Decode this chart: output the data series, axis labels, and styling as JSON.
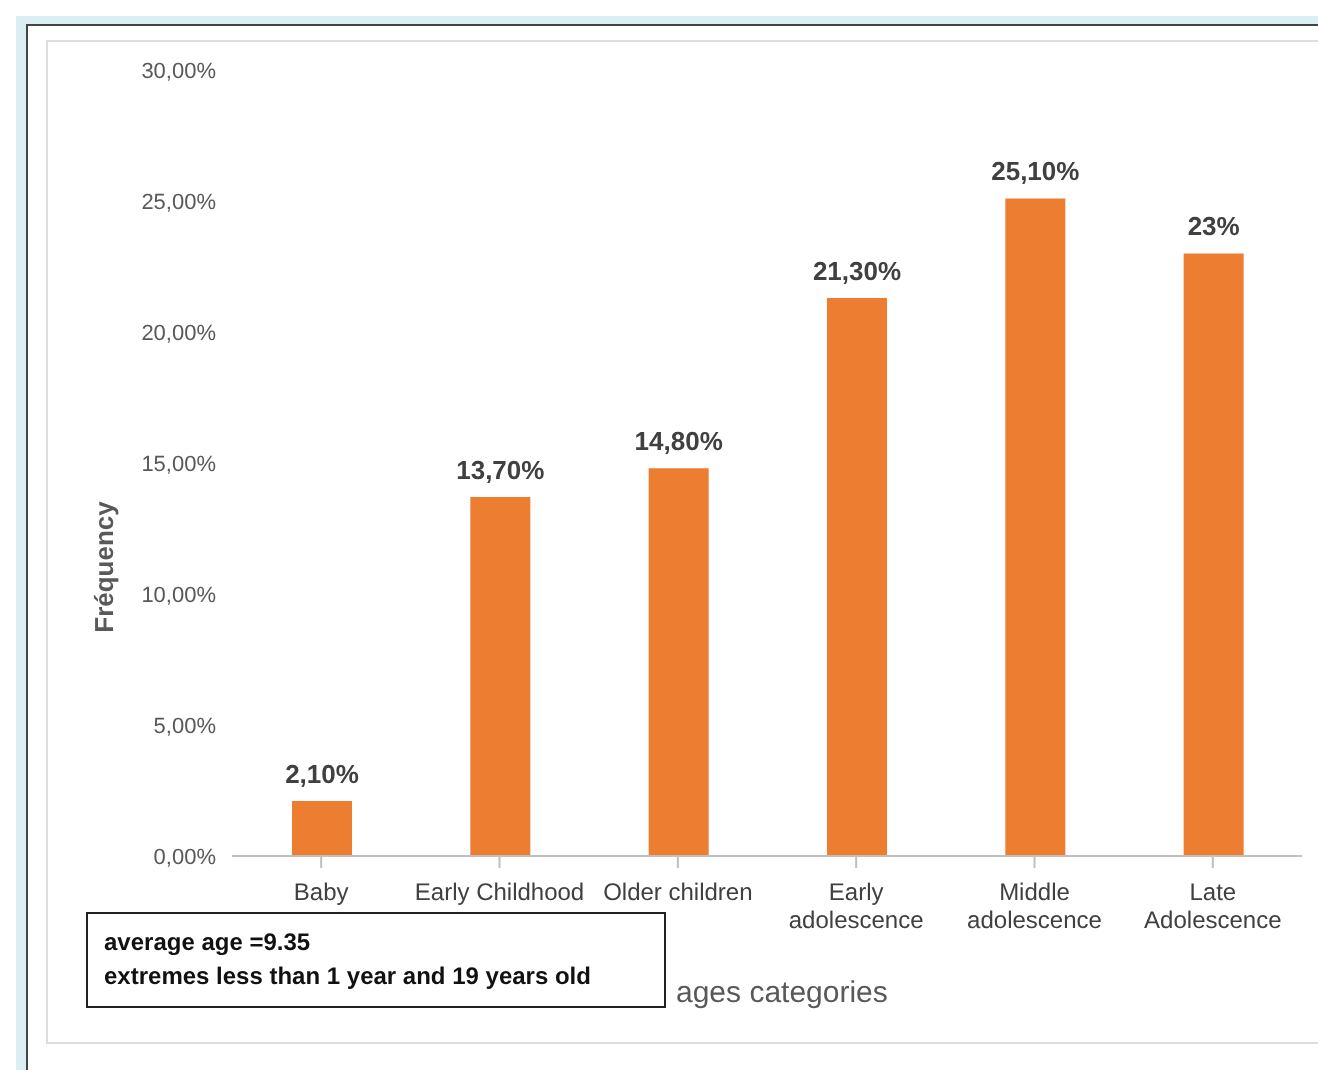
{
  "chart_data": {
    "type": "bar",
    "xlabel": "ages categories",
    "ylabel": "Fréquency",
    "categories": [
      "Baby",
      "Early Childhood",
      "Older children",
      "Early adolescence",
      "Middle adolescence",
      "Late Adolescence"
    ],
    "values": [
      2.1,
      13.7,
      14.8,
      21.3,
      25.1,
      23
    ],
    "value_labels": [
      "2,10%",
      "13,70%",
      "14,80%",
      "21,30%",
      "25,10%",
      "23%"
    ],
    "color": "#ed7d31",
    "ylim": [
      0,
      30
    ],
    "yticks": [
      {
        "value": 0,
        "label": "0,00%"
      },
      {
        "value": 5,
        "label": "5,00%"
      },
      {
        "value": 10,
        "label": "10,00%"
      },
      {
        "value": 15,
        "label": "15,00%"
      },
      {
        "value": 20,
        "label": "20,00%"
      },
      {
        "value": 25,
        "label": "25,00%"
      },
      {
        "value": 30,
        "label": "30,00%"
      }
    ],
    "grid": false,
    "annotations": [
      "average age =9.35",
      "extremes less than 1 year and 19 years old"
    ]
  }
}
